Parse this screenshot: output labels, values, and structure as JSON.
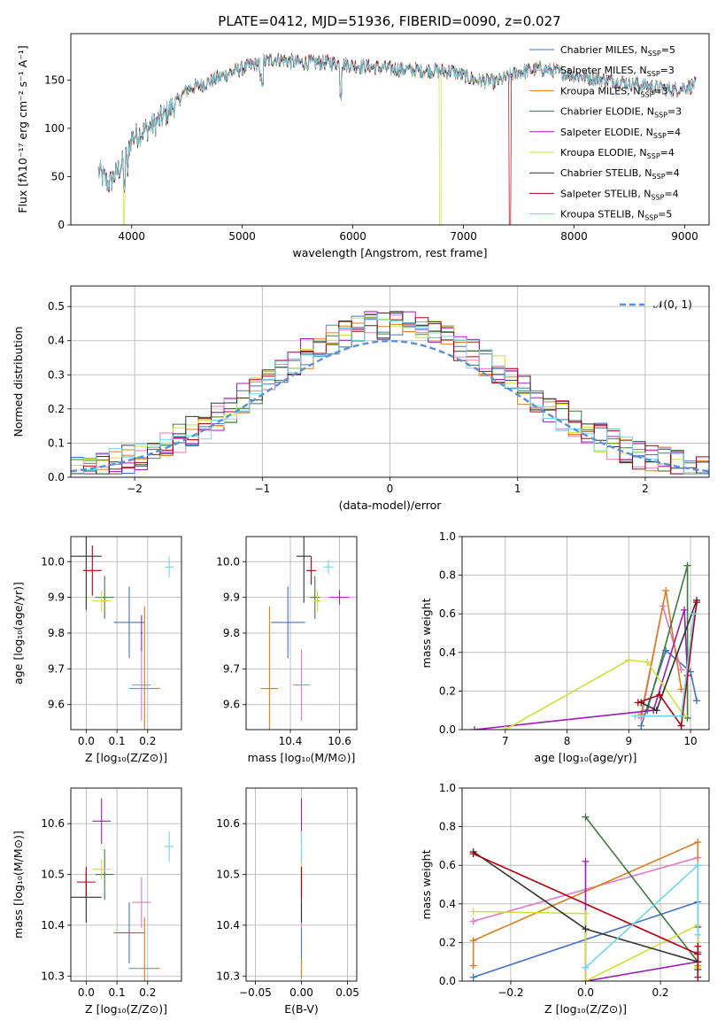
{
  "title": "PLATE=0412, MJD=51936, FIBERID=0090, z=0.027",
  "colors": [
    "#4472c4",
    "#e377c2",
    "#e07b22",
    "#3d7a3d",
    "#9b1fb0",
    "#cfe03a",
    "#333333",
    "#b00010",
    "#6fd6e8"
  ],
  "chart_data": [
    {
      "id": "spectrum",
      "type": "line",
      "xlabel": "wavelength [Angstrom, rest frame]",
      "ylabel": "Flux [fλ10⁻¹⁷ erg cm⁻² s⁻¹ A⁻¹]",
      "xlim": [
        3450,
        9220
      ],
      "ylim": [
        0,
        198
      ],
      "xticks": [
        4000,
        5000,
        6000,
        7000,
        8000,
        9000
      ],
      "yticks": [
        0,
        50,
        100,
        150
      ],
      "grid": false,
      "legend_position": "top-right",
      "continuum": {
        "x": [
          3700,
          3800,
          3950,
          4000,
          4150,
          4300,
          4500,
          4700,
          4900,
          5100,
          5300,
          5500,
          5800,
          6000,
          6300,
          6600,
          6900,
          7100,
          7300,
          7500,
          7700,
          8000,
          8300,
          8600,
          8900,
          9100
        ],
        "y": [
          55,
          42,
          70,
          90,
          100,
          113,
          140,
          148,
          158,
          166,
          172,
          168,
          168,
          165,
          162,
          160,
          159,
          150,
          148,
          158,
          162,
          155,
          150,
          145,
          140,
          145
        ]
      },
      "series": [
        {
          "name": "Chabrier MILES, N$_{SSP}$=5",
          "label_main": "Chabrier MILES, N",
          "label_sub": "SSP",
          "label_end": "=5"
        },
        {
          "name": "Salpeter MILES, N$_{SSP}$=3",
          "label_main": "Salpeter MILES, N",
          "label_sub": "SSP",
          "label_end": "=3"
        },
        {
          "name": "Kroupa MILES, N$_{SSP}$=3",
          "label_main": "Kroupa MILES, N",
          "label_sub": "SSP",
          "label_end": "=3"
        },
        {
          "name": "Chabrier ELODIE, N$_{SSP}$=3",
          "label_main": "Chabrier ELODIE, N",
          "label_sub": "SSP",
          "label_end": "=3"
        },
        {
          "name": "Salpeter ELODIE, N$_{SSP}$=4",
          "label_main": "Salpeter ELODIE, N",
          "label_sub": "SSP",
          "label_end": "=4"
        },
        {
          "name": "Kroupa ELODIE, N$_{SSP}$=4",
          "label_main": "Kroupa ELODIE, N",
          "label_sub": "SSP",
          "label_end": "=4"
        },
        {
          "name": "Chabrier STELIB, N$_{SSP}$=4",
          "label_main": "Chabrier STELIB, N",
          "label_sub": "SSP",
          "label_end": "=4"
        },
        {
          "name": "Salpeter STELIB, N$_{SSP}$=4",
          "label_main": "Salpeter STELIB, N",
          "label_sub": "SSP",
          "label_end": "=4"
        },
        {
          "name": "Kroupa STELIB, N$_{SSP}$=5",
          "label_main": "Kroupa STELIB, N",
          "label_sub": "SSP",
          "label_end": "=5"
        }
      ]
    },
    {
      "id": "residuals",
      "type": "histogram",
      "xlabel": "(data-model)/error",
      "ylabel": "Normed distribution",
      "xlim": [
        -2.5,
        2.5
      ],
      "ylim": [
        0,
        0.56
      ],
      "xticks": [
        -2,
        -1,
        0,
        1,
        2
      ],
      "yticks": [
        0.0,
        0.1,
        0.2,
        0.3,
        0.4,
        0.5
      ],
      "grid": true,
      "legend_position": "top-right",
      "reference_label": "𝒩(0, 1)",
      "bin_edges_start": -2.5,
      "bin_width": 0.1
    },
    {
      "id": "age_vs_Z",
      "type": "errorbar",
      "xlabel": "Z [log₁₀(Z/Z⊙)]",
      "ylabel": "age  [log₁₀(age/yr)]",
      "xlim": [
        -0.05,
        0.31
      ],
      "ylim": [
        9.53,
        10.07
      ],
      "xticks": [
        0.0,
        0.1,
        0.2
      ],
      "yticks": [
        9.6,
        9.7,
        9.8,
        9.9,
        10.0
      ],
      "points": [
        {
          "x": 0.14,
          "y": 9.83,
          "xerr": 0.05,
          "yerr": 0.1
        },
        {
          "x": 0.18,
          "y": 9.655,
          "xerr": 0.03,
          "yerr": 0.1
        },
        {
          "x": 0.19,
          "y": 9.645,
          "xerr": 0.05,
          "yerr": 0.23
        },
        {
          "x": 0.06,
          "y": 9.9,
          "xerr": 0.03,
          "yerr": 0.06
        },
        {
          "x": 0.18,
          "y": 9.8,
          "xerr": 0.003,
          "yerr": 0.05
        },
        {
          "x": 0.05,
          "y": 9.89,
          "xerr": 0.03,
          "yerr": 0.03
        },
        {
          "x": 0.0,
          "y": 10.015,
          "xerr": 0.05,
          "yerr": 0.15
        },
        {
          "x": 0.02,
          "y": 9.975,
          "xerr": 0.03,
          "yerr": 0.07
        },
        {
          "x": 0.27,
          "y": 9.985,
          "xerr": 0.015,
          "yerr": 0.03
        }
      ]
    },
    {
      "id": "age_vs_mass",
      "type": "errorbar",
      "xlabel": "mass [log₁₀(M/M⊙)]",
      "ylabel": "",
      "xlim": [
        10.22,
        10.67
      ],
      "ylim": [
        9.53,
        10.07
      ],
      "xticks": [
        10.4,
        10.6
      ],
      "yticks": [
        9.6,
        9.7,
        9.8,
        9.9,
        10.0
      ],
      "points": [
        {
          "x": 10.39,
          "y": 9.83,
          "xerr": 0.07,
          "yerr": 0.1
        },
        {
          "x": 10.445,
          "y": 9.655,
          "xerr": 0.035,
          "yerr": 0.1
        },
        {
          "x": 10.315,
          "y": 9.645,
          "xerr": 0.035,
          "yerr": 0.23
        },
        {
          "x": 10.5,
          "y": 9.9,
          "xerr": 0.02,
          "yerr": 0.06
        },
        {
          "x": 10.6,
          "y": 9.9,
          "xerr": 0.04,
          "yerr": 0.02
        },
        {
          "x": 10.51,
          "y": 9.89,
          "xerr": 0.015,
          "yerr": 0.03
        },
        {
          "x": 10.455,
          "y": 10.015,
          "xerr": 0.03,
          "yerr": 0.13
        },
        {
          "x": 10.485,
          "y": 9.975,
          "xerr": 0.02,
          "yerr": 0.04
        },
        {
          "x": 10.555,
          "y": 9.985,
          "xerr": 0.02,
          "yerr": 0.02
        }
      ]
    },
    {
      "id": "weight_vs_age",
      "type": "line",
      "xlabel": "age  [log₁₀(age/yr)]",
      "ylabel": "mass weight",
      "xlim": [
        6.3,
        10.3
      ],
      "ylim": [
        0,
        1.0
      ],
      "xticks": [
        7,
        8,
        9,
        10
      ],
      "yticks": [
        0.0,
        0.2,
        0.4,
        0.6,
        0.8,
        1.0
      ],
      "grid": true,
      "series": [
        {
          "x": [
            9.2,
            9.6,
            10.0,
            10.1
          ],
          "y": [
            0.02,
            0.41,
            0.3,
            0.15
          ]
        },
        {
          "x": [
            9.2,
            9.55,
            9.85
          ],
          "y": [
            0.06,
            0.64,
            0.31
          ]
        },
        {
          "x": [
            9.2,
            9.6,
            9.85
          ],
          "y": [
            0.08,
            0.72,
            0.21
          ]
        },
        {
          "x": [
            9.3,
            9.95,
            9.95
          ],
          "y": [
            0.1,
            0.85,
            0.06
          ]
        },
        {
          "x": [
            6.5,
            9.4,
            9.9,
            9.95
          ],
          "y": [
            0.0,
            0.1,
            0.62,
            0.28
          ]
        },
        {
          "x": [
            7.0,
            9.0,
            9.3,
            9.9
          ],
          "y": [
            0.0,
            0.36,
            0.35,
            0.07
          ]
        },
        {
          "x": [
            9.2,
            9.45,
            10.1
          ],
          "y": [
            0.14,
            0.1,
            0.67
          ]
        },
        {
          "x": [
            9.15,
            9.5,
            9.85,
            10.1
          ],
          "y": [
            0.14,
            0.18,
            0.02,
            0.66
          ]
        },
        {
          "x": [
            9.1,
            9.85,
            10.05
          ],
          "y": [
            0.07,
            0.07,
            0.6
          ]
        }
      ]
    },
    {
      "id": "mass_vs_Z",
      "type": "errorbar",
      "xlabel": "Z [log₁₀(Z/Z⊙)]",
      "ylabel": "mass [log₁₀(M/M⊙)]",
      "xlim": [
        -0.05,
        0.31
      ],
      "ylim": [
        10.29,
        10.67
      ],
      "xticks": [
        0.0,
        0.1,
        0.2
      ],
      "yticks": [
        10.3,
        10.4,
        10.5,
        10.6
      ],
      "points": [
        {
          "x": 0.14,
          "y": 10.385,
          "xerr": 0.05,
          "yerr": 0.06
        },
        {
          "x": 0.18,
          "y": 10.445,
          "xerr": 0.03,
          "yerr": 0.05
        },
        {
          "x": 0.19,
          "y": 10.315,
          "xerr": 0.05,
          "yerr": 0.1
        },
        {
          "x": 0.06,
          "y": 10.5,
          "xerr": 0.03,
          "yerr": 0.05
        },
        {
          "x": 0.05,
          "y": 10.605,
          "xerr": 0.03,
          "yerr": 0.045
        },
        {
          "x": 0.05,
          "y": 10.51,
          "xerr": 0.03,
          "yerr": 0.02
        },
        {
          "x": 0.0,
          "y": 10.455,
          "xerr": 0.05,
          "yerr": 0.05
        },
        {
          "x": 0.0,
          "y": 10.485,
          "xerr": 0.03,
          "yerr": 0.03
        },
        {
          "x": 0.27,
          "y": 10.555,
          "xerr": 0.015,
          "yerr": 0.03
        }
      ]
    },
    {
      "id": "mass_vs_EBV",
      "type": "errorbar",
      "xlabel": "E(B-V)",
      "ylabel": "",
      "xlim": [
        -0.06,
        0.06
      ],
      "ylim": [
        10.29,
        10.67
      ],
      "xticks": [
        -0.05,
        0.0,
        0.05
      ],
      "yticks": [
        10.3,
        10.4,
        10.5,
        10.6
      ],
      "points": [
        {
          "x": 0.0,
          "y": 10.385,
          "xerr": 0,
          "yerr": 0.06
        },
        {
          "x": 0.0,
          "y": 10.445,
          "xerr": 0,
          "yerr": 0.05
        },
        {
          "x": 0.0,
          "y": 10.315,
          "xerr": 0,
          "yerr": 0.02
        },
        {
          "x": 0.0,
          "y": 10.5,
          "xerr": 0,
          "yerr": 0.05
        },
        {
          "x": 0.0,
          "y": 10.605,
          "xerr": 0,
          "yerr": 0.045
        },
        {
          "x": 0.0,
          "y": 10.51,
          "xerr": 0,
          "yerr": 0.02
        },
        {
          "x": 0.0,
          "y": 10.455,
          "xerr": 0,
          "yerr": 0.05
        },
        {
          "x": 0.0,
          "y": 10.485,
          "xerr": 0,
          "yerr": 0.03
        },
        {
          "x": 0.0,
          "y": 10.555,
          "xerr": 0,
          "yerr": 0.03
        }
      ]
    },
    {
      "id": "weight_vs_Z",
      "type": "line",
      "xlabel": "Z [log₁₀(Z/Z⊙)]",
      "ylabel": "mass weight",
      "xlim": [
        -0.33,
        0.33
      ],
      "ylim": [
        0,
        1.0
      ],
      "xticks": [
        -0.2,
        0.0,
        0.2
      ],
      "yticks": [
        0.0,
        0.2,
        0.4,
        0.6,
        0.8,
        1.0
      ],
      "grid": true,
      "series": [
        {
          "x": [
            -0.3,
            0.3,
            0.3
          ],
          "y": [
            0.02,
            0.41,
            0.15
          ]
        },
        {
          "x": [
            -0.3,
            0.3,
            0.3
          ],
          "y": [
            0.31,
            0.64,
            0.06
          ]
        },
        {
          "x": [
            -0.3,
            -0.3,
            0.3,
            0.3
          ],
          "y": [
            0.08,
            0.21,
            0.72,
            0.08
          ]
        },
        {
          "x": [
            0.0,
            0.3,
            0.3
          ],
          "y": [
            0.85,
            0.1,
            0.06
          ]
        },
        {
          "x": [
            0.0,
            0.0,
            0.3,
            0.3
          ],
          "y": [
            0.62,
            0.0,
            0.1,
            0.28
          ]
        },
        {
          "x": [
            -0.3,
            0.0,
            0.0,
            0.3,
            0.3
          ],
          "y": [
            0.36,
            0.35,
            0.0,
            0.29,
            0.07
          ]
        },
        {
          "x": [
            -0.3,
            0.0,
            0.3,
            0.3
          ],
          "y": [
            0.67,
            0.27,
            0.1,
            0.14
          ]
        },
        {
          "x": [
            -0.3,
            0.3,
            0.3,
            0.3
          ],
          "y": [
            0.66,
            0.14,
            0.02,
            0.18
          ]
        },
        {
          "x": [
            0.0,
            0.0,
            0.3,
            0.3
          ],
          "y": [
            0.07,
            0.07,
            0.6,
            0.24
          ]
        }
      ]
    }
  ]
}
